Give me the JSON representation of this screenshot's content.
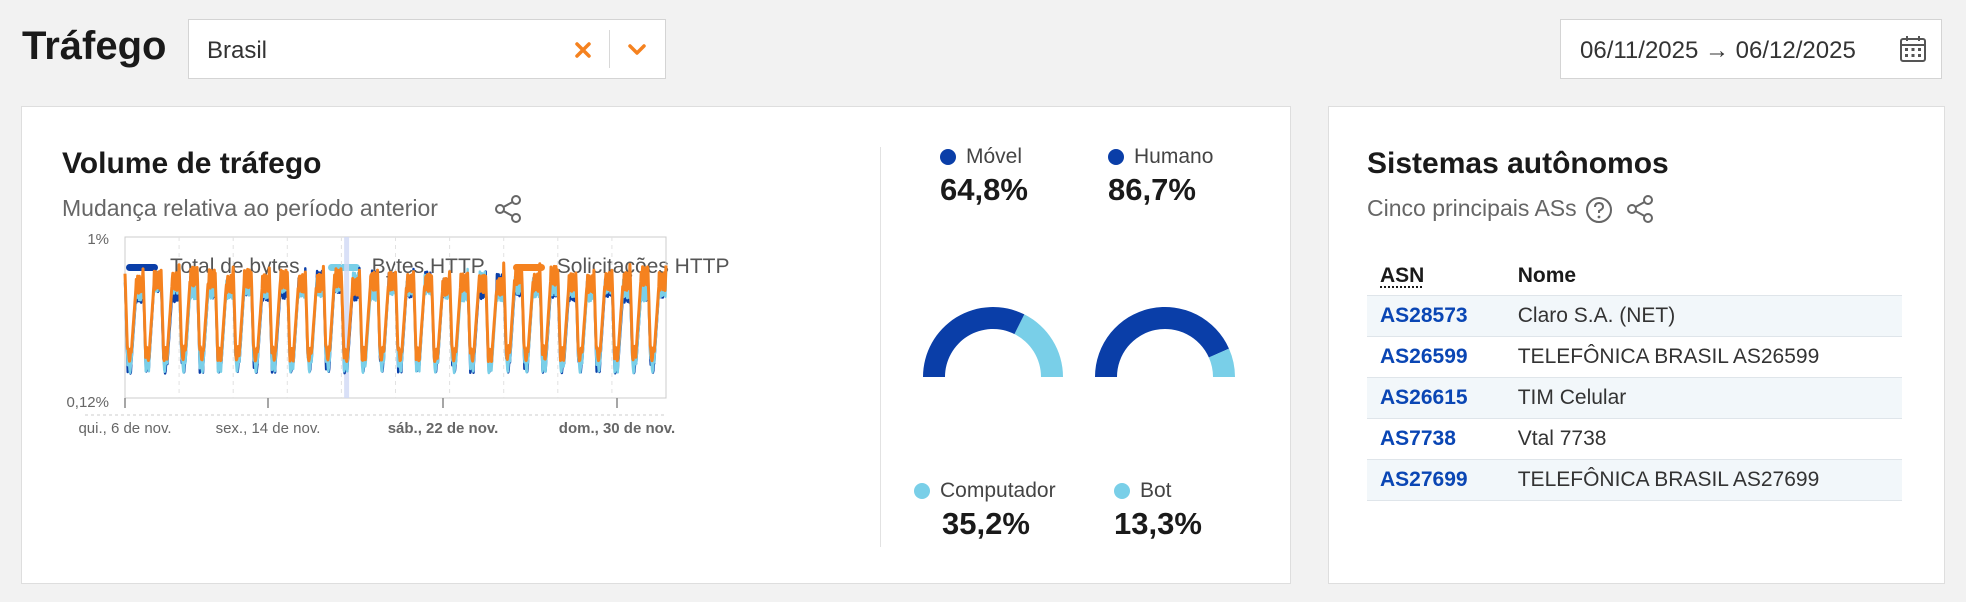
{
  "header": {
    "title": "Tráfego",
    "location": {
      "value": "Brasil"
    },
    "date_range": "06/11/2025 → 06/12/2025"
  },
  "traffic_card": {
    "title": "Volume de tráfego",
    "subtitle": "Mudança relativa ao período anterior",
    "legend": [
      "Total de bytes",
      "Bytes HTTP",
      "Solicitações HTTP"
    ],
    "chart_data": {
      "type": "line",
      "title": "",
      "y_scale": "log",
      "yticks": [
        "1%",
        "0,12%"
      ],
      "ylim": [
        0.12,
        1
      ],
      "xticks": [
        "qui., 6 de nov.",
        "sex., 14 de nov.",
        "sáb., 22 de nov.",
        "dom., 30 de nov."
      ],
      "series": [
        {
          "name": "Total de bytes",
          "color": "#0a3ea8",
          "pattern": "daily-cycle",
          "days": 30
        },
        {
          "name": "Bytes HTTP",
          "color": "#79cfe8",
          "pattern": "daily-cycle",
          "days": 30
        },
        {
          "name": "Solicitações HTTP",
          "color": "#f5821f",
          "pattern": "daily-cycle",
          "days": 30
        }
      ]
    }
  },
  "device_metrics": {
    "movel": {
      "label": "Móvel",
      "value": "64,8%",
      "fraction": 0.648,
      "color": "#0a3ea8"
    },
    "computador": {
      "label": "Computador",
      "value": "35,2%",
      "fraction": 0.352,
      "color": "#79cfe8"
    },
    "humano": {
      "label": "Humano",
      "value": "86,7%",
      "fraction": 0.867,
      "color": "#0a3ea8"
    },
    "bot": {
      "label": "Bot",
      "value": "13,3%",
      "fraction": 0.133,
      "color": "#79cfe8"
    }
  },
  "as_card": {
    "title": "Sistemas autônomos",
    "subtitle": "Cinco principais ASs",
    "columns": [
      "ASN",
      "Nome"
    ],
    "rows": [
      {
        "asn": "AS28573",
        "name": "Claro S.A. (NET)"
      },
      {
        "asn": "AS26599",
        "name": "TELEFÔNICA BRASIL AS26599"
      },
      {
        "asn": "AS26615",
        "name": "TIM Celular"
      },
      {
        "asn": "AS7738",
        "name": "Vtal 7738"
      },
      {
        "asn": "AS27699",
        "name": "TELEFÔNICA BRASIL AS27699"
      }
    ]
  },
  "icons": {
    "clear": "x-icon",
    "dropdown": "chevron-down-icon",
    "calendar": "calendar-icon",
    "share": "share-icon",
    "help": "question-circle-icon"
  },
  "colors": {
    "accent": "#f5821f",
    "dark_blue": "#0a3ea8",
    "light_blue": "#79cfe8",
    "link": "#0a46b4"
  }
}
